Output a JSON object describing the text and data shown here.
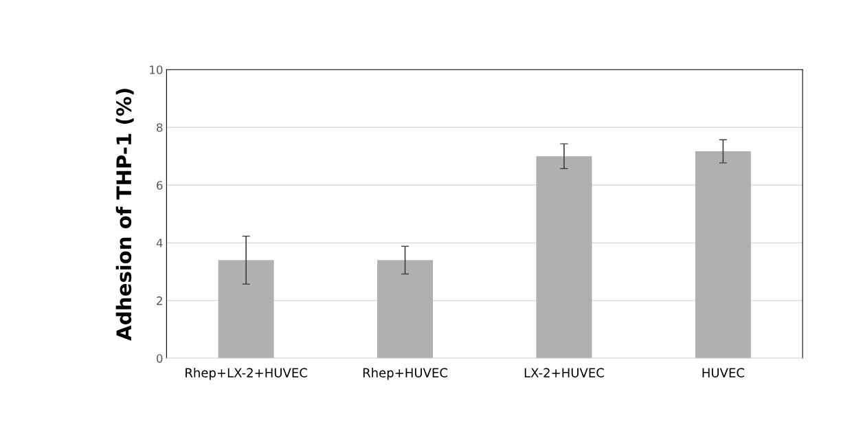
{
  "chart_data": {
    "type": "bar",
    "ylabel": "Adhesion of THP-1 (%)",
    "categories": [
      "Rhep+LX-2+HUVEC",
      "Rhep+HUVEC",
      "LX-2+HUVEC",
      "HUVEC"
    ],
    "values": [
      3.4,
      3.4,
      7.0,
      7.17
    ],
    "errors": [
      0.83,
      0.48,
      0.43,
      0.4
    ],
    "color": "#b0b0b0",
    "ylim": [
      0,
      10
    ],
    "yticks": [
      0,
      2,
      4,
      6,
      8,
      10
    ],
    "grid": "y"
  }
}
